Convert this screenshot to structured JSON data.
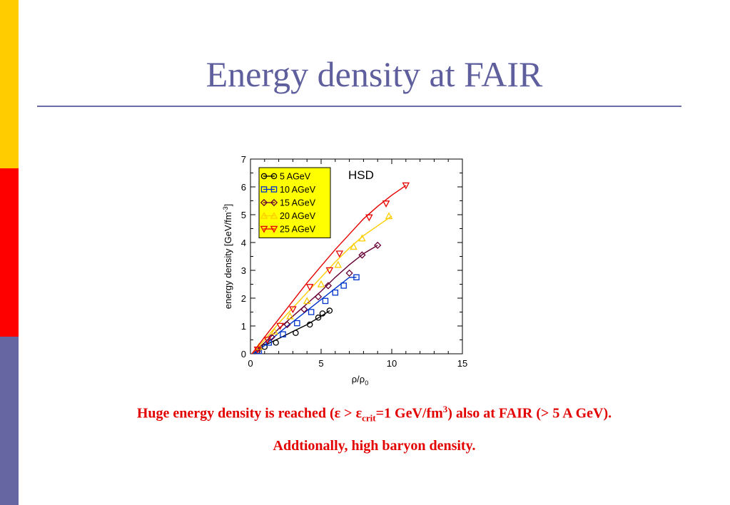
{
  "slide": {
    "title": "Energy density at FAIR",
    "caption_line1": {
      "part1": "Huge energy density is reached (ε > ε",
      "sub": "crit",
      "part2": "=1 GeV/fm",
      "sup": "3",
      "part3": ") also at FAIR (> 5 A GeV)."
    },
    "caption_line2": "Addtionally, high baryon density.",
    "colors": {
      "bar_yellow": "#ffcc00",
      "bar_red": "#ff0000",
      "bar_blue": "#6666a3",
      "title": "#5f5f9e",
      "caption": "#e30000"
    }
  },
  "chart_data": {
    "type": "line",
    "annotation": "HSD",
    "xlabel": "ρ/ρ",
    "xlabel_sub": "0",
    "ylabel": "energy density [GeV/fm",
    "ylabel_sup": "-3",
    "ylabel_end": "]",
    "xlim": [
      0,
      15
    ],
    "ylim": [
      0,
      7
    ],
    "xticks": [
      0,
      5,
      10,
      15
    ],
    "yticks": [
      0,
      1,
      2,
      3,
      4,
      5,
      6,
      7
    ],
    "grid": false,
    "legend_placement": "top-left",
    "legend_bg": "#ffff00",
    "series": [
      {
        "name": "5 AGeV",
        "color": "#000000",
        "marker": "circle",
        "line": [
          [
            0.1,
            0.0
          ],
          [
            0.5,
            0.1
          ],
          [
            1.0,
            0.3
          ],
          [
            2.0,
            0.55
          ],
          [
            3.0,
            0.8
          ],
          [
            4.0,
            1.05
          ],
          [
            5.0,
            1.35
          ],
          [
            5.6,
            1.55
          ]
        ],
        "points": [
          [
            0.5,
            0.1
          ],
          [
            1.0,
            0.25
          ],
          [
            1.8,
            0.4
          ],
          [
            3.2,
            0.75
          ],
          [
            4.2,
            1.05
          ],
          [
            4.8,
            1.3
          ],
          [
            5.1,
            1.45
          ],
          [
            5.6,
            1.55
          ]
        ]
      },
      {
        "name": "10 AGeV",
        "color": "#0033cc",
        "marker": "square",
        "line": [
          [
            0.2,
            0.0
          ],
          [
            1.0,
            0.3
          ],
          [
            2.0,
            0.75
          ],
          [
            3.0,
            1.15
          ],
          [
            4.0,
            1.55
          ],
          [
            5.0,
            1.95
          ],
          [
            6.0,
            2.35
          ],
          [
            7.0,
            2.75
          ],
          [
            7.5,
            2.75
          ]
        ],
        "points": [
          [
            0.6,
            0.1
          ],
          [
            1.3,
            0.4
          ],
          [
            2.3,
            0.7
          ],
          [
            3.3,
            1.1
          ],
          [
            4.3,
            1.5
          ],
          [
            5.3,
            1.9
          ],
          [
            6.0,
            2.2
          ],
          [
            6.6,
            2.45
          ],
          [
            7.5,
            2.75
          ]
        ]
      },
      {
        "name": "15 AGeV",
        "color": "#660033",
        "marker": "diamond",
        "line": [
          [
            0.1,
            0.0
          ],
          [
            1.0,
            0.4
          ],
          [
            2.0,
            0.9
          ],
          [
            3.0,
            1.35
          ],
          [
            4.0,
            1.8
          ],
          [
            5.0,
            2.25
          ],
          [
            6.0,
            2.75
          ],
          [
            7.0,
            3.2
          ],
          [
            8.0,
            3.6
          ],
          [
            9.0,
            3.9
          ]
        ],
        "points": [
          [
            0.6,
            0.2
          ],
          [
            1.5,
            0.6
          ],
          [
            2.6,
            1.05
          ],
          [
            3.8,
            1.6
          ],
          [
            4.8,
            2.05
          ],
          [
            5.5,
            2.45
          ],
          [
            7.0,
            2.9
          ],
          [
            7.9,
            3.55
          ],
          [
            9.0,
            3.9
          ]
        ]
      },
      {
        "name": "20 AGeV",
        "color": "#ffcc00",
        "marker": "triangle-up",
        "line": [
          [
            0.1,
            0.0
          ],
          [
            1.0,
            0.5
          ],
          [
            2.0,
            1.1
          ],
          [
            3.0,
            1.65
          ],
          [
            4.0,
            2.2
          ],
          [
            5.0,
            2.75
          ],
          [
            6.0,
            3.3
          ],
          [
            7.0,
            3.8
          ],
          [
            8.0,
            4.25
          ],
          [
            9.0,
            4.6
          ],
          [
            10.0,
            4.95
          ]
        ],
        "points": [
          [
            0.6,
            0.25
          ],
          [
            1.7,
            0.8
          ],
          [
            2.8,
            1.35
          ],
          [
            4.0,
            1.9
          ],
          [
            5.0,
            2.5
          ],
          [
            6.2,
            3.2
          ],
          [
            7.3,
            3.85
          ],
          [
            7.9,
            4.15
          ],
          [
            9.8,
            4.95
          ]
        ]
      },
      {
        "name": "25 AGeV",
        "color": "#e60000",
        "marker": "triangle-down",
        "line": [
          [
            0.1,
            0.0
          ],
          [
            1.0,
            0.6
          ],
          [
            2.0,
            1.25
          ],
          [
            3.0,
            1.9
          ],
          [
            4.0,
            2.55
          ],
          [
            5.0,
            3.15
          ],
          [
            6.0,
            3.75
          ],
          [
            7.0,
            4.3
          ],
          [
            8.0,
            4.85
          ],
          [
            9.0,
            5.3
          ],
          [
            10.0,
            5.7
          ],
          [
            11.0,
            6.05
          ]
        ],
        "points": [
          [
            0.5,
            0.15
          ],
          [
            1.2,
            0.5
          ],
          [
            2.1,
            1.0
          ],
          [
            3.0,
            1.6
          ],
          [
            4.2,
            2.4
          ],
          [
            5.6,
            3.0
          ],
          [
            6.3,
            3.6
          ],
          [
            8.4,
            4.9
          ],
          [
            9.6,
            5.4
          ],
          [
            11.0,
            6.05
          ]
        ]
      }
    ]
  }
}
